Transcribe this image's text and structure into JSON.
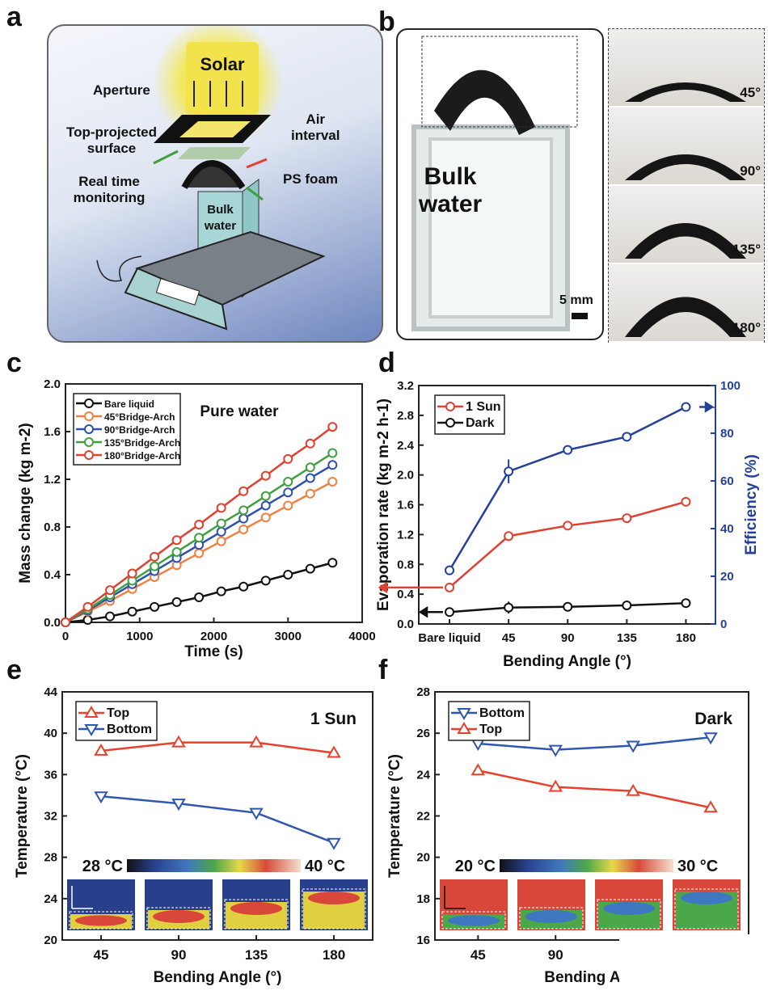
{
  "panels": {
    "a": {
      "letter": "a",
      "labels": {
        "solar": "Solar",
        "aperture": "Aperture",
        "air_interval": "Air\ninterval",
        "top_projected": "Top-projected\nsurface",
        "ps_foam": "PS foam",
        "real_time": "Real time\nmonitoring",
        "bulk_water": "Bulk\nwater"
      }
    },
    "b": {
      "letter": "b",
      "bulk_water": "Bulk\nwater",
      "scale_bar": "5 mm",
      "insets": [
        "45°",
        "90°",
        "135°",
        "180°"
      ]
    },
    "c": {
      "letter": "c"
    },
    "d": {
      "letter": "d"
    },
    "e": {
      "letter": "e",
      "colorbar_min": "28 °C",
      "colorbar_max": "40 °C"
    },
    "f": {
      "letter": "f",
      "colorbar_min": "20 °C",
      "colorbar_max": "30 °C"
    }
  },
  "chart_data": [
    {
      "id": "c",
      "type": "line",
      "title": "Pure water",
      "xlabel": "Time (s)",
      "ylabel": "Mass change (kg m-2)",
      "xlim": [
        0,
        4000
      ],
      "ylim": [
        0,
        2.0
      ],
      "xticks": [
        "0",
        "1000",
        "2000",
        "3000",
        "4000"
      ],
      "yticks": [
        "0.0",
        "0.4",
        "0.8",
        "1.2",
        "1.6",
        "2.0"
      ],
      "grid": false,
      "legend": "top-left",
      "x": [
        0,
        300,
        600,
        900,
        1200,
        1500,
        1800,
        2100,
        2400,
        2700,
        3000,
        3300,
        3600
      ],
      "series": [
        {
          "name": "Bare liquid",
          "color": "#111111",
          "values": [
            0,
            0.02,
            0.05,
            0.09,
            0.13,
            0.17,
            0.21,
            0.26,
            0.3,
            0.35,
            0.4,
            0.45,
            0.5
          ]
        },
        {
          "name": "45°Bridge-Arch",
          "color": "#f08040",
          "values": [
            0,
            0.09,
            0.18,
            0.28,
            0.38,
            0.48,
            0.58,
            0.68,
            0.78,
            0.88,
            0.98,
            1.08,
            1.18
          ]
        },
        {
          "name": "90°Bridge-Arch",
          "color": "#3050b0",
          "values": [
            0,
            0.1,
            0.21,
            0.32,
            0.43,
            0.54,
            0.65,
            0.76,
            0.87,
            0.98,
            1.09,
            1.21,
            1.32
          ]
        },
        {
          "name": "135°Bridge-Arch",
          "color": "#40a040",
          "values": [
            0,
            0.11,
            0.23,
            0.35,
            0.47,
            0.59,
            0.71,
            0.83,
            0.94,
            1.06,
            1.18,
            1.3,
            1.42
          ]
        },
        {
          "name": "180°Bridge-Arch",
          "color": "#e04030",
          "values": [
            0,
            0.13,
            0.27,
            0.41,
            0.55,
            0.69,
            0.82,
            0.96,
            1.1,
            1.23,
            1.37,
            1.5,
            1.64
          ]
        }
      ]
    },
    {
      "id": "d",
      "type": "line",
      "xlabel": "Bending Angle (°)",
      "ylabel": "Evaporation rate (kg m-2 h-1)",
      "ylabel_right": "Efficiency (%)",
      "categories": [
        "Bare liquid",
        "45",
        "90",
        "135",
        "180"
      ],
      "ylim": [
        0,
        3.2
      ],
      "ylim_right": [
        0,
        100
      ],
      "yticks": [
        "0.0",
        "0.4",
        "0.8",
        "1.2",
        "1.6",
        "2.0",
        "2.4",
        "2.8",
        "3.2"
      ],
      "yticks_right": [
        "0",
        "20",
        "40",
        "60",
        "80",
        "100"
      ],
      "grid": false,
      "legend": "top-left",
      "right_axis_color": "#23409a",
      "series": [
        {
          "name": "1 Sun",
          "color": "#e04030",
          "values": [
            0.49,
            1.18,
            1.32,
            1.42,
            1.64
          ],
          "errors": [
            0.03,
            0.03,
            0.03,
            0.03,
            0.03
          ]
        },
        {
          "name": "Dark",
          "color": "#111111",
          "values": [
            0.16,
            0.22,
            0.23,
            0.25,
            0.28
          ],
          "errors": [
            0.03,
            0.08,
            0.03,
            0.03,
            0.03
          ]
        },
        {
          "color": "#23409a",
          "axis": "right",
          "values": [
            22.5,
            64,
            73,
            78.5,
            91
          ],
          "errors": [
            2,
            5,
            1,
            1,
            1.5
          ]
        }
      ]
    },
    {
      "id": "e",
      "type": "line",
      "title": "1 Sun",
      "xlabel": "Bending Angle (°)",
      "ylabel": "Temperature (°C)",
      "x": [
        45,
        90,
        135,
        180
      ],
      "xlim": [
        22.5,
        202.5
      ],
      "ylim": [
        20,
        44
      ],
      "xticks": [
        "45",
        "90",
        "135",
        "180"
      ],
      "yticks": [
        "20",
        "24",
        "28",
        "32",
        "36",
        "40",
        "44"
      ],
      "grid": false,
      "legend": "top-left",
      "series": [
        {
          "name": "Top",
          "color": "#e8402a",
          "marker": "triangle-up",
          "values": [
            38.3,
            39.1,
            39.1,
            38.1
          ]
        },
        {
          "name": "Bottom",
          "color": "#2f56b0",
          "marker": "triangle-down",
          "values": [
            33.9,
            33.2,
            32.3,
            29.4
          ]
        }
      ]
    },
    {
      "id": "f",
      "type": "line",
      "title": "Dark",
      "xlabel": "Bending Ang",
      "ylabel": "Temperature (°C)",
      "x": [
        45,
        90,
        135,
        180
      ],
      "xlim": [
        20,
        202
      ],
      "ylim": [
        16,
        28
      ],
      "xticks": [
        "45",
        "90"
      ],
      "yticks": [
        "16",
        "18",
        "20",
        "22",
        "24",
        "26",
        "28"
      ],
      "grid": false,
      "legend": "top-left",
      "series": [
        {
          "name": "Bottom",
          "color": "#2f56b0",
          "marker": "triangle-down",
          "values": [
            25.5,
            25.2,
            25.4,
            25.8
          ]
        },
        {
          "name": "Top",
          "color": "#e8402a",
          "marker": "triangle-up",
          "values": [
            24.2,
            23.4,
            23.2,
            22.4
          ]
        }
      ]
    }
  ]
}
